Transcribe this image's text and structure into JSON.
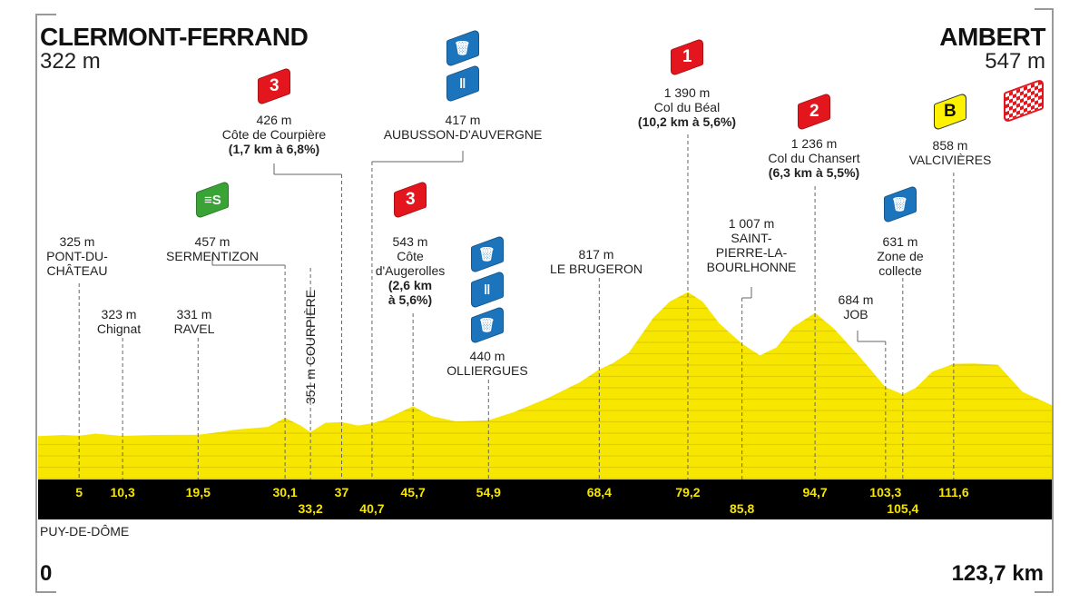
{
  "start": {
    "name": "CLERMONT-FERRAND",
    "altitude": "322 m"
  },
  "finish": {
    "name": "AMBERT",
    "altitude": "547 m"
  },
  "department": "PUY-DE-DÔME",
  "distance_start": "0",
  "distance_end": "123,7 km",
  "colors": {
    "profile": "#f7e600",
    "band": "#000000",
    "km_text": "#f5e400",
    "climb": "#e3161e",
    "sprint": "#3aa335",
    "feed": "#1c75bc",
    "bonus": "#fff200"
  },
  "waypoints": [
    {
      "km": "5",
      "alt": "325 m",
      "name": [
        "PONT-DU-",
        "CHÂTEAU"
      ]
    },
    {
      "km": "10,3",
      "alt": "323 m",
      "name": [
        "Chignat"
      ]
    },
    {
      "km": "19,5",
      "alt": "331 m",
      "name": [
        "RAVEL"
      ]
    },
    {
      "km": "30,1",
      "alt": "457 m",
      "name": [
        "SERMENTIZON"
      ],
      "icons": [
        "sprint-icon"
      ]
    },
    {
      "km": "33,2",
      "alt": "351 m",
      "name": [
        "COURPIÈRE"
      ],
      "vertical": true
    },
    {
      "km": "37",
      "alt": "426 m",
      "name": [
        "Côte de Courpière"
      ],
      "climb": "(1,7 km à 6,8%)",
      "category": "3"
    },
    {
      "km": "40,7",
      "alt": "417 m",
      "name": [
        "AUBUSSON-D'AUVERGNE"
      ],
      "icons": [
        "waste-bin-icon",
        "feed-zone-icon"
      ]
    },
    {
      "km": "45,7",
      "alt": "543 m",
      "name": [
        "Côte",
        "d'Augerolles"
      ],
      "climb": [
        "(2,6 km",
        "à 5,6%)"
      ],
      "category": "3"
    },
    {
      "km": "54,9",
      "alt": "440 m",
      "name": [
        "OLLIERGUES"
      ],
      "icons": [
        "waste-bin-icon",
        "feed-zone-icon",
        "waste-bin-icon"
      ]
    },
    {
      "km": "68,4",
      "alt": "817 m",
      "name": [
        "LE BRUGERON"
      ]
    },
    {
      "km": "79,2",
      "alt": "1 390 m",
      "name": [
        "Col du Béal"
      ],
      "climb": "(10,2 km à 5,6%)",
      "category": "1"
    },
    {
      "km": "85,8",
      "alt": "1 007 m",
      "name": [
        "SAINT-",
        "PIERRE-LA-",
        "BOURLHONNE"
      ]
    },
    {
      "km": "94,7",
      "alt": "1 236 m",
      "name": [
        "Col du Chansert"
      ],
      "climb": "(6,3 km à 5,5%)",
      "category": "2"
    },
    {
      "km": "103,3",
      "alt": "684 m",
      "name": [
        "JOB"
      ]
    },
    {
      "km": "105,4",
      "alt": "631 m",
      "name": [
        "Zone de",
        "collecte"
      ],
      "icons": [
        "waste-bin-icon"
      ]
    },
    {
      "km": "111,6",
      "alt": "858 m",
      "name": [
        "VALCIVIÈRES"
      ],
      "bonus": "B"
    }
  ],
  "chart_data": {
    "type": "area",
    "xlabel": "",
    "ylabel": "",
    "xlim": [
      0,
      123.7
    ],
    "x_unit": "km",
    "y_unit": "m",
    "profile": [
      [
        0,
        322
      ],
      [
        3,
        330
      ],
      [
        5,
        325
      ],
      [
        7,
        340
      ],
      [
        10.3,
        323
      ],
      [
        14,
        330
      ],
      [
        19.5,
        331
      ],
      [
        22,
        350
      ],
      [
        24,
        370
      ],
      [
        28,
        390
      ],
      [
        30.1,
        457
      ],
      [
        32,
        400
      ],
      [
        33.2,
        351
      ],
      [
        35,
        420
      ],
      [
        37,
        426
      ],
      [
        39,
        400
      ],
      [
        40.7,
        417
      ],
      [
        42,
        440
      ],
      [
        45.7,
        543
      ],
      [
        48,
        470
      ],
      [
        51,
        430
      ],
      [
        54.9,
        440
      ],
      [
        58,
        500
      ],
      [
        62,
        600
      ],
      [
        66,
        720
      ],
      [
        68.4,
        817
      ],
      [
        70,
        860
      ],
      [
        72,
        940
      ],
      [
        75,
        1200
      ],
      [
        77,
        1320
      ],
      [
        79.2,
        1390
      ],
      [
        81,
        1320
      ],
      [
        83,
        1160
      ],
      [
        85.8,
        1007
      ],
      [
        88,
        920
      ],
      [
        90,
        980
      ],
      [
        92,
        1130
      ],
      [
        94.7,
        1236
      ],
      [
        97,
        1120
      ],
      [
        100,
        920
      ],
      [
        103.3,
        684
      ],
      [
        105.4,
        631
      ],
      [
        107,
        680
      ],
      [
        109,
        800
      ],
      [
        111.6,
        858
      ],
      [
        114,
        860
      ],
      [
        117,
        850
      ],
      [
        120,
        650
      ],
      [
        123.7,
        547
      ]
    ],
    "km_markers": [
      "5",
      "10,3",
      "19,5",
      "30,1",
      "33,2",
      "37",
      "40,7",
      "45,7",
      "54,9",
      "68,4",
      "79,2",
      "85,8",
      "94,7",
      "103,3",
      "105,4",
      "111,6"
    ]
  }
}
